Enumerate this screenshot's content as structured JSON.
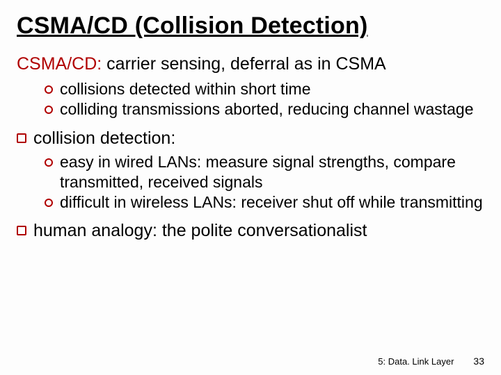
{
  "colors": {
    "accent": "#b00000",
    "text": "#000000",
    "background": "#fdfdfd"
  },
  "title": "CSMA/CD (Collision Detection)",
  "lead": {
    "label": "CSMA/CD:",
    "rest": " carrier sensing, deferral as in CSMA"
  },
  "lead_sub": [
    "collisions detected within short time",
    "colliding transmissions aborted, reducing channel wastage"
  ],
  "items": [
    {
      "text": "collision detection:",
      "sub": [
        "easy in wired LANs: measure signal strengths, compare transmitted, received signals",
        "difficult in wireless LANs: receiver shut off while transmitting"
      ]
    },
    {
      "text": "human analogy: the polite conversationalist",
      "sub": []
    }
  ],
  "footer": {
    "section": "5: Data. Link Layer",
    "page": "33"
  }
}
